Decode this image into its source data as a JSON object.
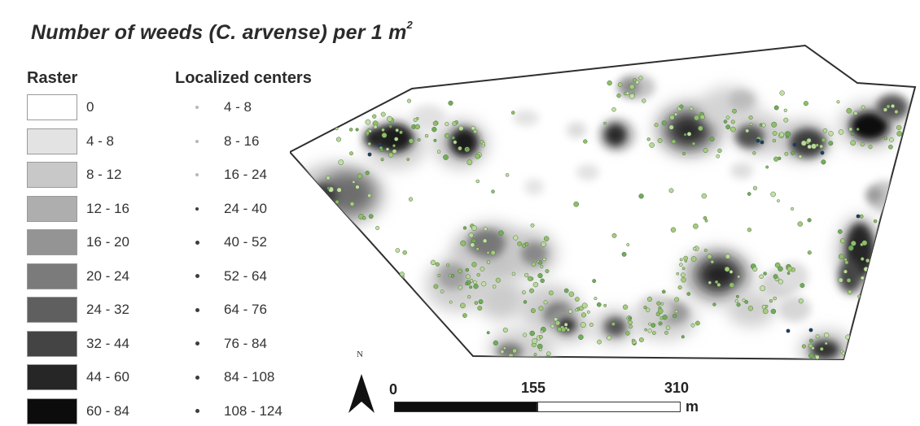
{
  "title": {
    "text": "Number of weeds (C. arvense) per 1 m",
    "superscript": "2"
  },
  "legend": {
    "raster_heading": "Raster",
    "centers_heading": "Localized centers",
    "raster_classes": [
      {
        "label": "0",
        "color": "#ffffff"
      },
      {
        "label": "4 - 8",
        "color": "#e3e3e3"
      },
      {
        "label": "8 - 12",
        "color": "#c8c8c8"
      },
      {
        "label": "12 - 16",
        "color": "#aeaeae"
      },
      {
        "label": "16 - 20",
        "color": "#949494"
      },
      {
        "label": "20 - 24",
        "color": "#7b7b7b"
      },
      {
        "label": "24 - 32",
        "color": "#5f5f5f"
      },
      {
        "label": "32 - 44",
        "color": "#444444"
      },
      {
        "label": "44 - 60",
        "color": "#262626"
      },
      {
        "label": "60 - 84",
        "color": "#0c0c0c"
      }
    ],
    "center_classes": [
      {
        "label": "4 - 8",
        "color": "#c4dcb2"
      },
      {
        "label": "8 - 16",
        "color": "#b4d3a0"
      },
      {
        "label": "16 - 24",
        "color": "#9fc48a"
      },
      {
        "label": "24 - 40",
        "color": "#82b36f"
      },
      {
        "label": "40 - 52",
        "color": "#5f9d58"
      },
      {
        "label": "52 - 64",
        "color": "#3f8a4a"
      },
      {
        "label": "64 - 76",
        "color": "#2a7a52"
      },
      {
        "label": "76 - 84",
        "color": "#1d6a5e"
      },
      {
        "label": "84 - 108",
        "color": "#1a4f5f"
      },
      {
        "label": "108 - 124",
        "color": "#0d2a3d"
      }
    ]
  },
  "north_arrow": {
    "label": "N"
  },
  "scale_bar": {
    "ticks": [
      "0",
      "155",
      "310"
    ],
    "unit": "m"
  }
}
